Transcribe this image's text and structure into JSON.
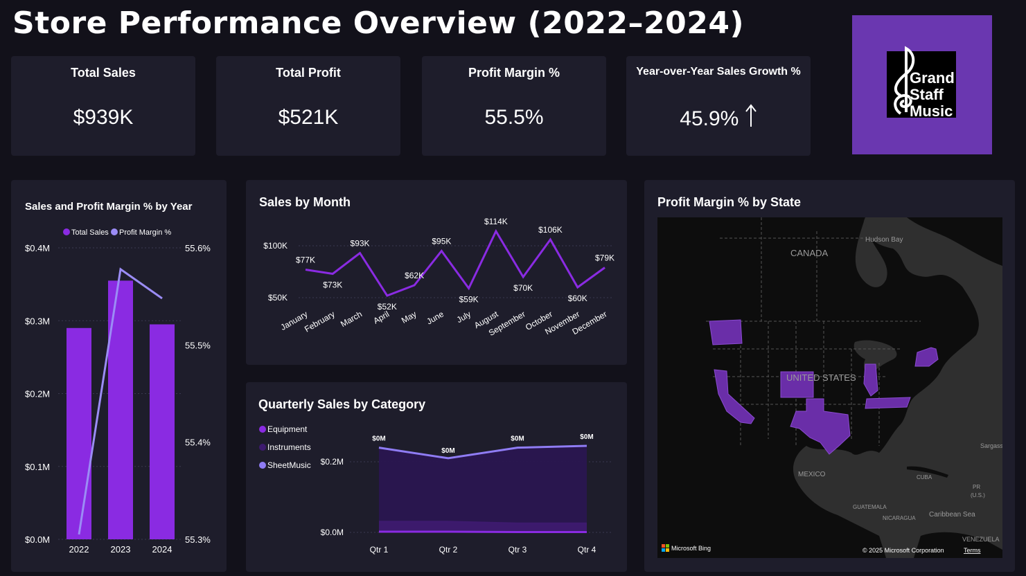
{
  "page": {
    "title": "Store Performance Overview (2022–2024)"
  },
  "kpis": [
    {
      "label": "Total Sales",
      "value": "$939K"
    },
    {
      "label": "Total Profit",
      "value": "$521K"
    },
    {
      "label": "Profit Margin %",
      "value": "55.5%"
    },
    {
      "label": "Year-over-Year Sales Growth %",
      "value": "45.9%",
      "trend_icon": "up-arrow-icon"
    }
  ],
  "logo": {
    "lines": [
      "Grand",
      "Staff",
      "Music"
    ],
    "background": "#6a37b0",
    "icon": "treble-clef-icon"
  },
  "colors": {
    "bar": "#8a2be2",
    "margin_line": "#9b8cf5",
    "month_line": "#8a2be2",
    "equipment": "#8a2be2",
    "instruments": "#3d1a6e",
    "sheetmusic": "#8f7cf4",
    "state_fill": "#6a2ea8",
    "panel": "#1e1d2b",
    "page": "#12111a"
  },
  "yearly_chart": {
    "title": "Sales and Profit Margin % by Year",
    "legend": [
      "Total Sales",
      "Profit Margin %"
    ],
    "left_ticks": [
      "$0.4M",
      "$0.3M",
      "$0.2M",
      "$0.1M",
      "$0.0M"
    ],
    "right_ticks": [
      "55.6%",
      "55.5%",
      "55.4%",
      "55.3%"
    ]
  },
  "monthly_chart": {
    "title": "Sales by Month",
    "y_ticks": [
      "$100K",
      "$50K"
    ],
    "data_labels": [
      "$77K",
      "$73K",
      "$93K",
      "$52K",
      "$62K",
      "$95K",
      "$59K",
      "$114K",
      "$70K",
      "$106K",
      "$60K",
      "$79K"
    ]
  },
  "quarterly_chart": {
    "title": "Quarterly Sales by Category",
    "legend": [
      "Equipment",
      "Instruments",
      "SheetMusic"
    ],
    "y_ticks": [
      "$0.2M",
      "$0.0M"
    ],
    "data_labels": [
      "$0M",
      "$0M",
      "$0M",
      "$0M"
    ]
  },
  "map": {
    "title": "Profit Margin % by State",
    "labels": {
      "canada": "CANADA",
      "hudson_bay": "Hudson Bay",
      "united_states": "UNITED STATES",
      "mexico": "MEXICO",
      "cuba": "CUBA",
      "guatemala": "GUATEMALA",
      "nicaragua": "NICARAGUA",
      "caribbean_sea": "Caribbean Sea",
      "venezuela": "VENEZUELA",
      "sargasso": "Sargass",
      "pr": "PR",
      "us": "(U.S.)"
    },
    "attribution": "Microsoft Bing",
    "copyright": "© 2025 Microsoft Corporation",
    "terms": "Terms",
    "highlighted_states": [
      "Washington",
      "California",
      "Colorado",
      "Texas",
      "Illinois",
      "Tennessee",
      "New York"
    ]
  },
  "chart_data": [
    {
      "type": "bar",
      "title": "Sales and Profit Margin % by Year",
      "categories": [
        "2022",
        "2023",
        "2024"
      ],
      "series": [
        {
          "name": "Total Sales",
          "type": "bar",
          "axis": "left",
          "values": [
            0.29,
            0.355,
            0.295
          ]
        },
        {
          "name": "Profit Margin %",
          "type": "line",
          "axis": "right",
          "values": [
            55.305,
            55.578,
            55.548
          ]
        }
      ],
      "ylim": [
        0,
        0.4
      ],
      "y2lim": [
        55.3,
        55.6
      ],
      "legend": "top"
    },
    {
      "type": "line",
      "title": "Sales by Month",
      "categories": [
        "January",
        "February",
        "March",
        "April",
        "May",
        "June",
        "July",
        "August",
        "September",
        "October",
        "November",
        "December"
      ],
      "values": [
        77,
        73,
        93,
        52,
        62,
        95,
        59,
        114,
        70,
        106,
        60,
        79
      ],
      "ylim": [
        40,
        120
      ]
    },
    {
      "type": "area",
      "title": "Quarterly Sales by Category",
      "categories": [
        "Qtr 1",
        "Qtr 2",
        "Qtr 3",
        "Qtr 4"
      ],
      "series": [
        {
          "name": "Equipment",
          "values": [
            0.002,
            0.002,
            0.001,
            0.001
          ]
        },
        {
          "name": "Instruments",
          "values": [
            0.03,
            0.03,
            0.025,
            0.025
          ]
        },
        {
          "name": "SheetMusic",
          "values": [
            0.24,
            0.21,
            0.24,
            0.245
          ]
        }
      ],
      "ylim": [
        0,
        0.25
      ],
      "legend": "top-left"
    }
  ]
}
